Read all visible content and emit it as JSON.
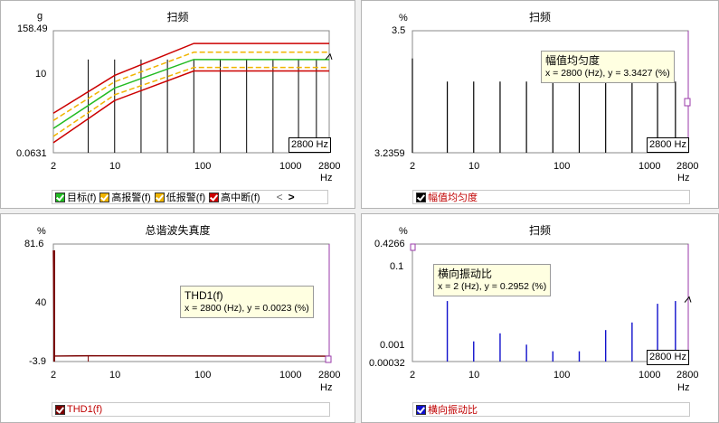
{
  "panels": {
    "sweep_main": {
      "title": "扫频",
      "y_unit": "g",
      "x_unit": "Hz",
      "y_ticks": [
        "158.49",
        "10",
        "0.0631"
      ],
      "x_ticks": [
        "2",
        "10",
        "100",
        "1000",
        "2800"
      ],
      "cursor_label": "2800 Hz",
      "legend": [
        {
          "label": "目标(f)",
          "color": "#22bb22"
        },
        {
          "label": "高报警(f)",
          "color": "#f0b400"
        },
        {
          "label": "低报警(f)",
          "color": "#f0b400"
        },
        {
          "label": "高中断(f)",
          "color": "#cc0000"
        }
      ],
      "legend_nav_prev": "<",
      "legend_nav_next": ">"
    },
    "uniformity": {
      "title": "扫频",
      "y_unit": "%",
      "x_unit": "Hz",
      "y_ticks": [
        "3.5",
        "3.2359"
      ],
      "x_ticks": [
        "2",
        "10",
        "100",
        "1000",
        "2800"
      ],
      "cursor_label": "2800 Hz",
      "tooltip_title": "幅值均匀度",
      "tooltip_value": "x = 2800 (Hz), y = 3.3427 (%)",
      "legend": [
        {
          "label": "幅值均匀度",
          "color": "#000000"
        }
      ]
    },
    "thd": {
      "title": "总谐波失真度",
      "y_unit": "%",
      "x_unit": "Hz",
      "y_ticks": [
        "81.6",
        "40",
        "-3.9"
      ],
      "x_ticks": [
        "2",
        "10",
        "100",
        "1000",
        "2800"
      ],
      "tooltip_title": "THD1(f)",
      "tooltip_value": "x = 2800 (Hz), y = 0.0023 (%)",
      "legend": [
        {
          "label": "THD1(f)",
          "color": "#7a0000"
        }
      ]
    },
    "transverse": {
      "title": "扫频",
      "y_unit": "%",
      "x_unit": "Hz",
      "y_ticks": [
        "0.4266",
        "0.1",
        "0.001",
        "0.00032"
      ],
      "x_ticks": [
        "2",
        "10",
        "100",
        "1000",
        "2800"
      ],
      "cursor_label": "2800 Hz",
      "tooltip_title": "横向振动比",
      "tooltip_value": "x = 2 (Hz), y = 0.2952 (%)",
      "legend": [
        {
          "label": "横向振动比",
          "color": "#1010cc"
        }
      ]
    }
  },
  "chart_data": [
    {
      "type": "line",
      "title": "扫频",
      "xlabel": "Hz",
      "ylabel": "g",
      "x_scale": "log",
      "y_scale": "log",
      "xlim": [
        2,
        2800
      ],
      "ylim": [
        0.0631,
        158.49
      ],
      "series": [
        {
          "name": "目标(f)",
          "x": [
            2,
            10,
            80,
            2800
          ],
          "y": [
            0.3,
            4,
            25,
            25
          ]
        },
        {
          "name": "高报警(f)",
          "x": [
            2,
            10,
            80,
            2800
          ],
          "y": [
            0.5,
            6,
            40,
            40
          ]
        },
        {
          "name": "低报警(f)",
          "x": [
            2,
            10,
            80,
            2800
          ],
          "y": [
            0.18,
            2.6,
            15,
            15
          ]
        },
        {
          "name": "高中断(f)",
          "x": [
            2,
            10,
            80,
            2800
          ],
          "y": [
            0.8,
            9,
            70,
            70
          ]
        }
      ]
    },
    {
      "type": "bar",
      "title": "扫频",
      "xlabel": "Hz",
      "ylabel": "%",
      "x_scale": "log",
      "ylim": [
        3.2359,
        3.5
      ],
      "series": [
        {
          "name": "幅值均匀度",
          "x": [
            2,
            5,
            10,
            20,
            40,
            80,
            160,
            320,
            640,
            1250,
            2000,
            2800
          ],
          "y": [
            3.44,
            3.39,
            3.39,
            3.39,
            3.39,
            3.39,
            3.39,
            3.39,
            3.39,
            3.39,
            3.39,
            3.3427
          ]
        }
      ]
    },
    {
      "type": "line",
      "title": "总谐波失真度",
      "xlabel": "Hz",
      "ylabel": "%",
      "x_scale": "log",
      "ylim": [
        -3.9,
        81.6
      ],
      "series": [
        {
          "name": "THD1(f)",
          "x": [
            2,
            2.05,
            5,
            2800
          ],
          "y": [
            77,
            0.1,
            0.3,
            0.0023
          ]
        }
      ]
    },
    {
      "type": "bar",
      "title": "扫频",
      "xlabel": "Hz",
      "ylabel": "%",
      "x_scale": "log",
      "y_scale": "log",
      "ylim": [
        0.00032,
        0.4266
      ],
      "series": [
        {
          "name": "横向振动比",
          "x": [
            2,
            5,
            10,
            20,
            40,
            80,
            160,
            320,
            640,
            1250,
            2000,
            2800
          ],
          "y": [
            0.2952,
            0.013,
            0.0011,
            0.0018,
            0.0009,
            0.0006,
            0.0006,
            0.0022,
            0.0035,
            0.011,
            0.013,
            0.012
          ]
        }
      ]
    }
  ]
}
